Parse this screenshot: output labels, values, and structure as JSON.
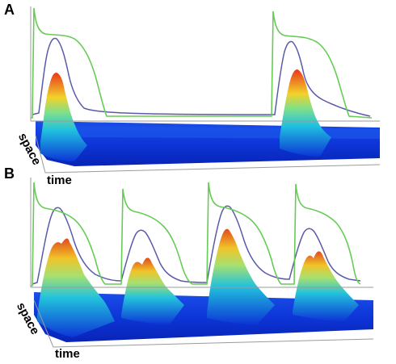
{
  "colors": {
    "green_trace": "#66cc55",
    "blue_trace": "#5a5aaa",
    "surface_dark": "#0a2fd6",
    "surface_mid": "#22b8e0",
    "surface_yellow": "#f2d22a",
    "surface_peak": "#e8361c",
    "axis": "#9a9a9a"
  },
  "panels": [
    {
      "id": "A",
      "label": "A",
      "axis_x_label": "time",
      "axis_y_label": "space"
    },
    {
      "id": "B",
      "label": "B",
      "axis_x_label": "time",
      "axis_y_label": "space"
    }
  ]
}
